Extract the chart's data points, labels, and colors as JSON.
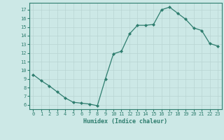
{
  "x": [
    0,
    1,
    2,
    3,
    4,
    5,
    6,
    7,
    8,
    9,
    10,
    11,
    12,
    13,
    14,
    15,
    16,
    17,
    18,
    19,
    20,
    21,
    22,
    23
  ],
  "y": [
    9.5,
    8.8,
    8.2,
    7.5,
    6.8,
    6.3,
    6.2,
    6.1,
    5.9,
    9.0,
    11.9,
    12.2,
    14.2,
    15.2,
    15.2,
    15.3,
    17.0,
    17.3,
    16.6,
    15.9,
    14.9,
    14.6,
    13.1,
    12.8
  ],
  "xlabel": "Humidex (Indice chaleur)",
  "xlim": [
    -0.5,
    23.5
  ],
  "ylim": [
    5.5,
    17.8
  ],
  "yticks": [
    6,
    7,
    8,
    9,
    10,
    11,
    12,
    13,
    14,
    15,
    16,
    17
  ],
  "xticks": [
    0,
    1,
    2,
    3,
    4,
    5,
    6,
    7,
    8,
    9,
    10,
    11,
    12,
    13,
    14,
    15,
    16,
    17,
    18,
    19,
    20,
    21,
    22,
    23
  ],
  "line_color": "#2e7d6e",
  "marker_color": "#2e7d6e",
  "bg_color": "#cce8e6",
  "grid_color": "#b8d4d2",
  "xlabel_color": "#2e7d6e",
  "tick_color": "#2e7d6e",
  "tick_fontsize": 5.0,
  "xlabel_fontsize": 6.0
}
